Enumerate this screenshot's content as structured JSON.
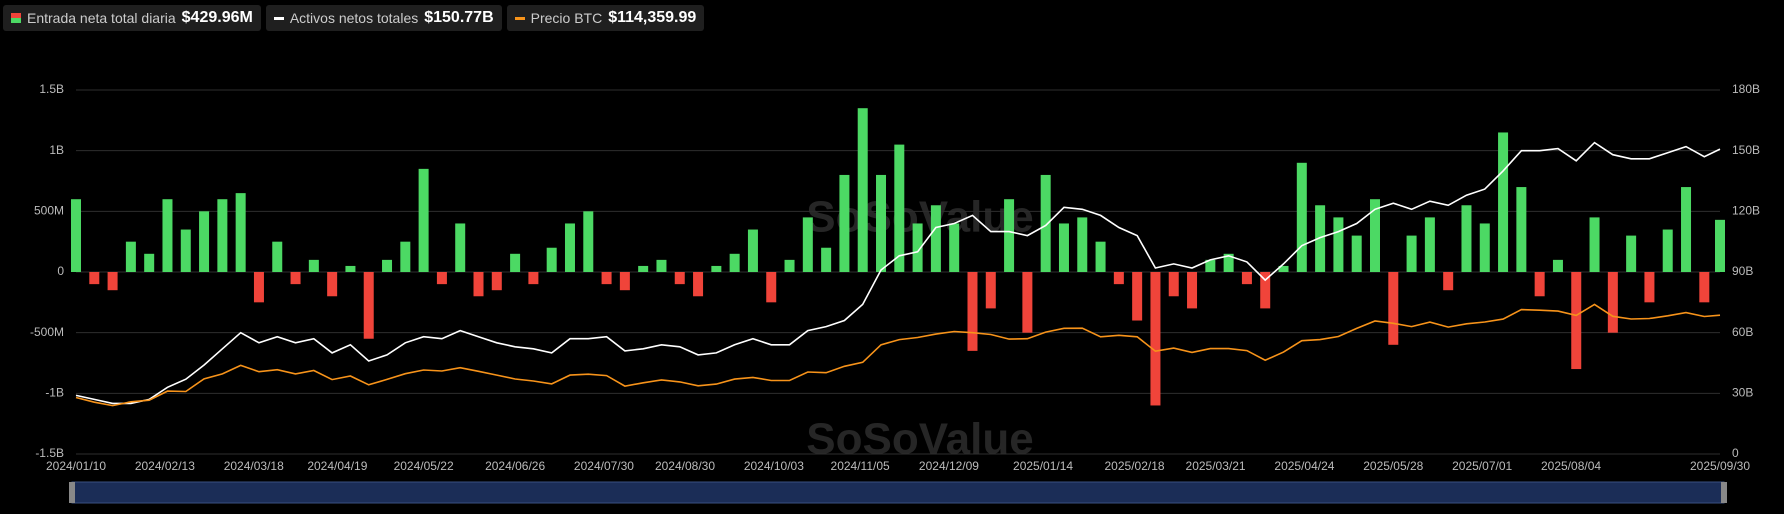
{
  "chart_data": {
    "type": "combo",
    "watermark": "SoSoValue",
    "x": [
      "2024/01/10",
      "2024/01/17",
      "2024/01/24",
      "2024/01/31",
      "2024/02/07",
      "2024/02/14",
      "2024/02/21",
      "2024/02/28",
      "2024/03/06",
      "2024/03/13",
      "2024/03/20",
      "2024/03/27",
      "2024/04/03",
      "2024/04/10",
      "2024/04/17",
      "2024/04/24",
      "2024/05/01",
      "2024/05/08",
      "2024/05/15",
      "2024/05/22",
      "2024/05/29",
      "2024/06/05",
      "2024/06/12",
      "2024/06/19",
      "2024/06/26",
      "2024/07/03",
      "2024/07/10",
      "2024/07/17",
      "2024/07/24",
      "2024/07/31",
      "2024/08/07",
      "2024/08/14",
      "2024/08/21",
      "2024/08/28",
      "2024/09/04",
      "2024/09/11",
      "2024/09/18",
      "2024/09/25",
      "2024/10/02",
      "2024/10/09",
      "2024/10/16",
      "2024/10/23",
      "2024/10/30",
      "2024/11/06",
      "2024/11/13",
      "2024/11/20",
      "2024/11/27",
      "2024/12/04",
      "2024/12/11",
      "2024/12/18",
      "2024/12/25",
      "2025/01/01",
      "2025/01/08",
      "2025/01/15",
      "2025/01/22",
      "2025/01/29",
      "2025/02/05",
      "2025/02/12",
      "2025/02/19",
      "2025/02/26",
      "2025/03/05",
      "2025/03/12",
      "2025/03/19",
      "2025/03/26",
      "2025/04/02",
      "2025/04/09",
      "2025/04/16",
      "2025/04/23",
      "2025/04/30",
      "2025/05/07",
      "2025/05/14",
      "2025/05/21",
      "2025/05/28",
      "2025/06/04",
      "2025/06/11",
      "2025/06/18",
      "2025/06/25",
      "2025/07/02",
      "2025/07/09",
      "2025/07/16",
      "2025/07/23",
      "2025/07/30",
      "2025/08/06",
      "2025/08/13",
      "2025/08/20",
      "2025/08/27",
      "2025/09/03",
      "2025/09/10",
      "2025/09/17",
      "2025/09/24",
      "2025/09/30"
    ],
    "xlim": [
      "2024/01/10",
      "2025/09/30"
    ],
    "xticks": [
      "2024/01/10",
      "2024/02/13",
      "2024/03/18",
      "2024/04/19",
      "2024/05/22",
      "2024/06/26",
      "2024/07/30",
      "2024/08/30",
      "2024/10/03",
      "2024/11/05",
      "2024/12/09",
      "2025/01/14",
      "2025/02/18",
      "2025/03/21",
      "2025/04/24",
      "2025/05/28",
      "2025/07/01",
      "2025/08/04",
      "2025/09/30"
    ],
    "ylim": [
      -1500,
      1500
    ],
    "yticks": [
      {
        "value": -1500,
        "label": "-1.5B"
      },
      {
        "value": -1000,
        "label": "-1B"
      },
      {
        "value": -500,
        "label": "-500M"
      },
      0,
      {
        "value": 500,
        "label": "500M"
      },
      {
        "value": 1000,
        "label": "1B"
      },
      {
        "value": 1500,
        "label": "1.5B"
      }
    ],
    "y2lim": [
      0,
      180
    ],
    "y2ticks": [
      0,
      {
        "value": 30,
        "label": "30B"
      },
      {
        "value": 60,
        "label": "60B"
      },
      {
        "value": 90,
        "label": "90B"
      },
      {
        "value": 120,
        "label": "120B"
      },
      {
        "value": 150,
        "label": "150B"
      },
      {
        "value": 180,
        "label": "180B"
      }
    ],
    "y3lim": [
      0,
      300000
    ],
    "grid": true,
    "series": [
      {
        "name": "Entrada neta total diaria",
        "type": "bar",
        "color": "#4cd964",
        "negative_color": "#f0443a",
        "legend_value": "$429.96M",
        "values": [
          600,
          -100,
          -150,
          250,
          150,
          600,
          350,
          500,
          600,
          650,
          -250,
          250,
          -100,
          100,
          -200,
          50,
          -550,
          100,
          250,
          850,
          -100,
          400,
          -200,
          -150,
          150,
          -100,
          200,
          400,
          500,
          -100,
          -150,
          50,
          100,
          -100,
          -200,
          50,
          150,
          350,
          -250,
          100,
          450,
          200,
          800,
          1350,
          800,
          1050,
          400,
          550,
          400,
          -650,
          -300,
          600,
          -500,
          800,
          400,
          450,
          250,
          -100,
          -400,
          -1100,
          -200,
          -300,
          100,
          150,
          -100,
          -300,
          50,
          900,
          550,
          450,
          300,
          600,
          -600,
          300,
          450,
          -150,
          550,
          400,
          1150,
          700,
          -200,
          100,
          -800,
          450,
          -500,
          300,
          -250,
          350,
          700,
          -250,
          429.96
        ]
      },
      {
        "name": "Activos netos totales",
        "type": "line",
        "axis": "y2",
        "color": "#ffffff",
        "legend_value": "$150.77B",
        "values": [
          29,
          27,
          25,
          25,
          27,
          33,
          37,
          44,
          52,
          60,
          55,
          58,
          55,
          57,
          50,
          54,
          46,
          49,
          55,
          58,
          57,
          61,
          58,
          55,
          53,
          52,
          50,
          57,
          57,
          58,
          51,
          52,
          54,
          53,
          49,
          50,
          54,
          57,
          54,
          54,
          61,
          63,
          66,
          74,
          91,
          98,
          100,
          112,
          114,
          118,
          110,
          110,
          108,
          113,
          122,
          121,
          118,
          112,
          108,
          92,
          94,
          92,
          96,
          98,
          95,
          86,
          94,
          103,
          107,
          110,
          114,
          121,
          124,
          121,
          125,
          123,
          128,
          131,
          140,
          150,
          150,
          151,
          145,
          154,
          148,
          146,
          146,
          149,
          152,
          147,
          150.77
        ]
      },
      {
        "name": "Precio BTC",
        "type": "line",
        "axis": "y3",
        "color": "#f7931a",
        "legend_value": "$114,359.99",
        "values": [
          46600,
          42700,
          39900,
          43000,
          44300,
          51800,
          51500,
          62000,
          66000,
          73000,
          67800,
          69500,
          66000,
          68800,
          61300,
          64300,
          57000,
          61500,
          66200,
          69200,
          68400,
          71100,
          68200,
          65000,
          61800,
          60200,
          57800,
          65000,
          65800,
          64600,
          56000,
          58700,
          61100,
          59400,
          56200,
          57600,
          61700,
          63100,
          60600,
          60600,
          67600,
          67000,
          72300,
          75600,
          90000,
          94300,
          96000,
          98800,
          101000,
          100000,
          98500,
          94700,
          95000,
          100500,
          103600,
          103700,
          96600,
          97800,
          96600,
          84700,
          87300,
          83700,
          86900,
          86900,
          85200,
          77300,
          84000,
          93400,
          94300,
          96800,
          103500,
          109600,
          107700,
          105000,
          108700,
          104600,
          107300,
          108800,
          111200,
          119000,
          118500,
          117800,
          114200,
          123200,
          113500,
          111300,
          111700,
          113900,
          116500,
          113300,
          114359.99
        ]
      }
    ]
  }
}
